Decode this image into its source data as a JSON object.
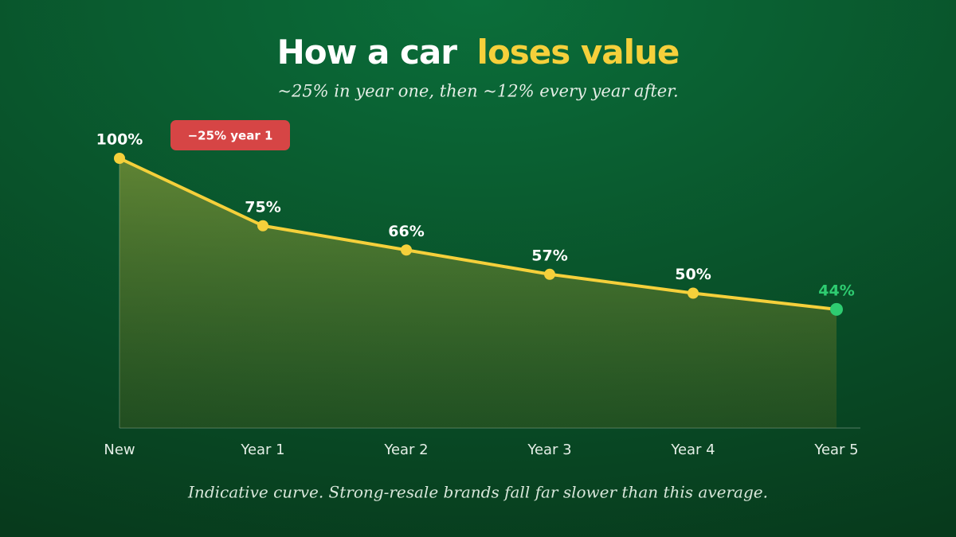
{
  "chart_data": {
    "type": "line",
    "title": [
      "How a car",
      "loses value"
    ],
    "subtitle": "~25% in year one, then ~12% every year after.",
    "annotation": "−25% year 1",
    "note": "Indicative curve. Strong-resale brands fall far slower than this average.",
    "categories": [
      "New",
      "Year 1",
      "Year 2",
      "Year 3",
      "Year 4",
      "Year 5"
    ],
    "values": [
      100,
      75,
      66,
      57,
      50,
      44
    ],
    "value_labels": [
      "100%",
      "75%",
      "66%",
      "57%",
      "50%",
      "44%"
    ],
    "color": "#f5d03b",
    "last_point_color": "#2ecc71",
    "annotation_color": "#d64545",
    "ylim": [
      0,
      100
    ]
  }
}
